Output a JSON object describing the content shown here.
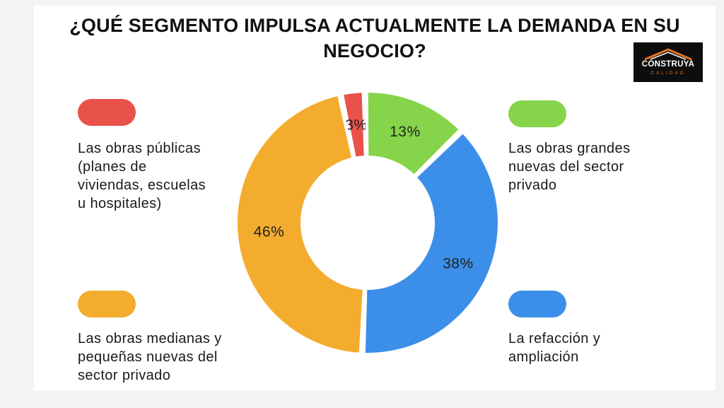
{
  "chart_data": {
    "type": "pie",
    "title": "¿QUÉ SEGMENTO IMPULSA ACTUALMENTE LA DEMANDA EN SU NEGOCIO?",
    "unit": "%",
    "slices": [
      {
        "name": "Las obras públicas (planes de viviendas, escuelas u hospitales)",
        "value": 3,
        "label": "3%",
        "color": "#e8524a"
      },
      {
        "name": "Las obras grandes nuevas del sector privado",
        "value": 13,
        "label": "13%",
        "color": "#86d44a"
      },
      {
        "name": "La refacción y ampliación",
        "value": 38,
        "label": "38%",
        "color": "#3c8fe8"
      },
      {
        "name": "Las obras medianas y pequeñas nuevas del sector privado",
        "value": 46,
        "label": "46%",
        "color": "#f3ac2d"
      }
    ]
  },
  "title_line1": "¿QUÉ SEGMENTO IMPULSA ACTUALMENTE LA DEMANDA EN SU",
  "title_line2": "NEGOCIO?",
  "legend": {
    "top_left": [
      "Las obras públicas",
      "(planes de",
      "viviendas, escuelas",
      "u hospitales)"
    ],
    "top_right": [
      "Las obras grandes",
      "nuevas del sector",
      "privado"
    ],
    "bottom_left": [
      "Las obras medianas y",
      "pequeñas nuevas del",
      "sector privado"
    ],
    "bottom_right": [
      "La refacción y",
      "ampliación"
    ]
  },
  "logo": {
    "brand": "CONSTRUYA",
    "tagline": "CALIDAD"
  }
}
